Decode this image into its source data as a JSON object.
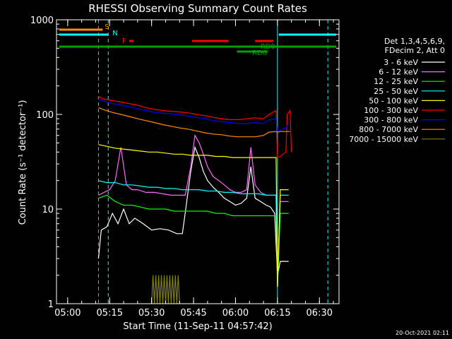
{
  "chart_data": {
    "type": "line",
    "title": "RHESSI Observing Summary Count Rates",
    "xlabel": "Start Time (11-Sep-11 04:57:42)",
    "ylabel": "Count Rate (s⁻¹ detector⁻¹)",
    "footer": "20-Oct-2021 02:11",
    "x_unit": "minutes after 05:00",
    "xlim": [
      -4,
      97
    ],
    "ylim": [
      1,
      1000
    ],
    "y_scale": "log",
    "x_ticks": [
      {
        "v": 0,
        "label": "05:00"
      },
      {
        "v": 15,
        "label": "05:15"
      },
      {
        "v": 30,
        "label": "05:30"
      },
      {
        "v": 45,
        "label": "05:45"
      },
      {
        "v": 60,
        "label": "06:00"
      },
      {
        "v": 75,
        "label": "06:15"
      },
      {
        "v": 90,
        "label": "06:30"
      }
    ],
    "y_ticks": [
      {
        "v": 1,
        "label": "1"
      },
      {
        "v": 10,
        "label": "10"
      },
      {
        "v": 100,
        "label": "100"
      },
      {
        "v": 1000,
        "label": "1000"
      }
    ],
    "legend": {
      "header": [
        "Det 1,3,4,5,6,9,",
        "FDecim 2, Att 0"
      ],
      "placement": "right"
    },
    "series": [
      {
        "name": "3 - 6 keV",
        "color": "#ffffff",
        "x": [
          11,
          12,
          14,
          16,
          18,
          20,
          22,
          24,
          27,
          30,
          33,
          36,
          39,
          41,
          42,
          44,
          45.5,
          47,
          48.5,
          50,
          52,
          54,
          56,
          58,
          60,
          62,
          64,
          65.5,
          67,
          69,
          71,
          72.5,
          74,
          75,
          76,
          78,
          79
        ],
        "y": [
          3,
          6,
          6.5,
          9,
          7,
          10,
          7,
          8,
          7,
          6,
          6.2,
          6,
          5.5,
          5.5,
          9,
          25,
          45,
          35,
          25,
          20,
          17,
          15,
          13,
          12,
          11,
          11.5,
          13,
          28,
          13,
          12,
          11,
          10.5,
          9,
          2,
          2.8,
          2.8,
          2.8
        ]
      },
      {
        "name": "6 - 12 keV",
        "color": "#ff66ff",
        "x": [
          11,
          13,
          15,
          17,
          19,
          21,
          23,
          25,
          28,
          31,
          34,
          37,
          40,
          42,
          44,
          45.5,
          47,
          48.5,
          50,
          52,
          54,
          56,
          58,
          60,
          62,
          64,
          65.5,
          67,
          69,
          71,
          73,
          74.5,
          75,
          76,
          78,
          79
        ],
        "y": [
          14,
          15,
          16,
          20,
          45,
          18,
          16,
          16,
          15,
          15,
          14.5,
          14,
          14,
          14,
          28,
          60,
          50,
          38,
          28,
          22,
          20,
          18,
          16,
          15,
          15,
          16,
          45,
          18,
          15,
          14,
          14,
          14,
          1.5,
          12,
          12,
          12
        ]
      },
      {
        "name": "12 - 25 keV",
        "color": "#00ff00",
        "x": [
          11,
          14,
          17,
          20,
          23,
          26,
          29,
          32,
          35,
          38,
          41,
          44,
          47,
          50,
          53,
          56,
          59,
          62,
          65,
          68,
          71,
          73,
          74.5,
          75,
          76,
          78,
          79
        ],
        "y": [
          13,
          14,
          12,
          11,
          11,
          10.5,
          10,
          10,
          10,
          9.5,
          9.5,
          9.5,
          9.5,
          9.5,
          9,
          9,
          8.5,
          8.5,
          8.5,
          8.5,
          8.5,
          8.5,
          8.5,
          1.5,
          9,
          9,
          9
        ]
      },
      {
        "name": "25 - 50 keV",
        "color": "#00ffff",
        "x": [
          11,
          14,
          17,
          20,
          23,
          26,
          29,
          32,
          35,
          38,
          41,
          44,
          47,
          50,
          53,
          56,
          59,
          62,
          65,
          68,
          71,
          73,
          74.5,
          75,
          76,
          78,
          79
        ],
        "y": [
          20,
          19,
          19,
          18,
          18,
          17.5,
          17,
          17,
          16.5,
          16.5,
          16,
          16,
          16,
          15.5,
          15.5,
          15,
          15,
          14.5,
          14.5,
          14.5,
          14,
          14,
          14,
          1.5,
          14,
          14,
          14
        ]
      },
      {
        "name": "50 - 100 keV",
        "color": "#ffff00",
        "x": [
          11,
          14,
          17,
          20,
          23,
          26,
          29,
          32,
          35,
          38,
          41,
          44,
          47,
          50,
          53,
          56,
          59,
          62,
          65,
          68,
          71,
          73,
          74.5,
          75,
          76,
          78,
          79
        ],
        "y": [
          48,
          46,
          44,
          43,
          42,
          41,
          40,
          40,
          39,
          38,
          38,
          37,
          37,
          37,
          36,
          36,
          35,
          35,
          35,
          35,
          35,
          35,
          35,
          1.5,
          16,
          16,
          16
        ]
      },
      {
        "name": "100 - 300 keV",
        "color": "#ff0000",
        "x": [
          11,
          13,
          16,
          19,
          22,
          25,
          28,
          31,
          34,
          37,
          40,
          43,
          46,
          49,
          52,
          55,
          58,
          61,
          64,
          67,
          70,
          72,
          74.5,
          75,
          76,
          78,
          78.5,
          79.5,
          80
        ],
        "y": [
          155,
          145,
          140,
          135,
          130,
          125,
          118,
          113,
          110,
          108,
          106,
          104,
          100,
          97,
          93,
          90,
          88,
          88,
          90,
          92,
          90,
          100,
          110,
          35,
          36,
          40,
          100,
          110,
          40
        ]
      },
      {
        "name": "300 - 800 keV",
        "color": "#0000ff",
        "x": [
          11,
          13,
          16,
          19,
          22,
          25,
          28,
          31,
          34,
          37,
          40,
          43,
          46,
          49,
          52,
          55,
          58,
          61,
          64,
          67,
          70,
          72,
          74.5,
          75,
          76,
          78,
          79
        ],
        "y": [
          145,
          138,
          130,
          125,
          120,
          115,
          110,
          105,
          103,
          101,
          99,
          96,
          93,
          90,
          86,
          84,
          82,
          80,
          80,
          82,
          80,
          88,
          90,
          65,
          68,
          72,
          80
        ]
      },
      {
        "name": "800 - 7000 keV",
        "color": "#ff8c00",
        "x": [
          11,
          13,
          16,
          19,
          22,
          25,
          28,
          31,
          34,
          37,
          40,
          43,
          46,
          49,
          52,
          55,
          58,
          61,
          64,
          67,
          70,
          72,
          74.5,
          75,
          76,
          78,
          79.5
        ],
        "y": [
          118,
          112,
          105,
          100,
          95,
          90,
          86,
          82,
          78,
          75,
          72,
          70,
          67,
          64,
          62,
          61,
          59,
          58,
          58,
          58,
          60,
          65,
          66,
          65,
          66,
          66,
          66
        ]
      },
      {
        "name": "7000 - 15000 keV",
        "color": "#808000",
        "x": [
          30,
          30.5,
          31,
          31.5,
          32,
          32.5,
          33,
          33.5,
          34,
          34.5,
          35,
          35.5,
          36,
          36.5,
          37,
          37.5,
          38,
          38.5,
          39,
          39.5,
          40
        ],
        "y": [
          1,
          2,
          1,
          2,
          1,
          2,
          1,
          2,
          1,
          2,
          1,
          2,
          1,
          2,
          1,
          2,
          1,
          2,
          1,
          2,
          1
        ]
      }
    ],
    "flag_bars": [
      {
        "label": "S",
        "color": "#ff8c00",
        "x": [
          -3,
          12.5
        ],
        "level": 1
      },
      {
        "label": "N",
        "color": "#00ffff",
        "x": [
          -3,
          14.5
        ],
        "level": 2
      },
      {
        "label": "N",
        "color": "#00ffff",
        "x": [
          75.5,
          96
        ],
        "level": 2
      },
      {
        "label": "F",
        "color": "#ff0000",
        "x": [
          22,
          23.5
        ],
        "level": 3
      },
      {
        "label": "F",
        "color": "#ff0000",
        "x": [
          44.5,
          57.5
        ],
        "level": 3
      },
      {
        "label": "F",
        "color": "#ff0000",
        "x": [
          67,
          73.5
        ],
        "level": 3
      },
      {
        "label": "RD0",
        "color": "#00a000",
        "x": [
          -3,
          96
        ],
        "level": 4
      },
      {
        "label": "RD6",
        "color": "#00a000",
        "x": [
          60.5,
          71.5
        ],
        "level": 5
      }
    ],
    "vlines": [
      {
        "x": 11,
        "color": "#ff8c00",
        "dashed": true
      },
      {
        "x": 14.5,
        "color": "#00ffff",
        "dashed": true
      },
      {
        "x": 75,
        "color": "#00ffff",
        "dashed": false
      },
      {
        "x": 93,
        "color": "#00ffff",
        "dashed": true
      }
    ]
  }
}
